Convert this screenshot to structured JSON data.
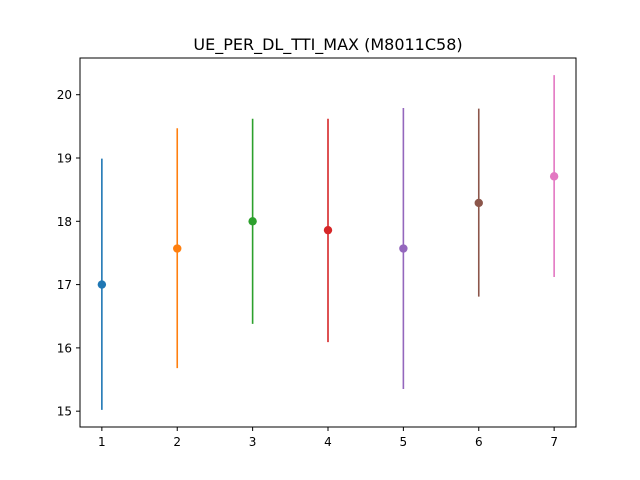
{
  "chart_data": {
    "type": "scatter",
    "title": "UE_PER_DL_TTI_MAX (M8011C58)",
    "xlabel": "",
    "ylabel": "",
    "xlim": [
      0.71,
      7.29
    ],
    "ylim": [
      14.75,
      20.58
    ],
    "x_ticks": [
      1,
      2,
      3,
      4,
      5,
      6,
      7
    ],
    "y_ticks": [
      15,
      16,
      17,
      18,
      19,
      20
    ],
    "grid": false,
    "legend": "none",
    "series": [
      {
        "x": 1,
        "y": 17.0,
        "err_low": 15.02,
        "err_high": 18.99,
        "color": "#1f77b4"
      },
      {
        "x": 2,
        "y": 17.57,
        "err_low": 15.68,
        "err_high": 19.47,
        "color": "#ff7f0e"
      },
      {
        "x": 3,
        "y": 18.0,
        "err_low": 16.38,
        "err_high": 19.62,
        "color": "#2ca02c"
      },
      {
        "x": 4,
        "y": 17.86,
        "err_low": 16.09,
        "err_high": 19.62,
        "color": "#d62728"
      },
      {
        "x": 5,
        "y": 17.57,
        "err_low": 15.35,
        "err_high": 19.79,
        "color": "#9467bd"
      },
      {
        "x": 6,
        "y": 18.29,
        "err_low": 16.81,
        "err_high": 19.78,
        "color": "#8c564b"
      },
      {
        "x": 7,
        "y": 18.71,
        "err_low": 17.12,
        "err_high": 20.31,
        "color": "#e377c2"
      }
    ]
  }
}
